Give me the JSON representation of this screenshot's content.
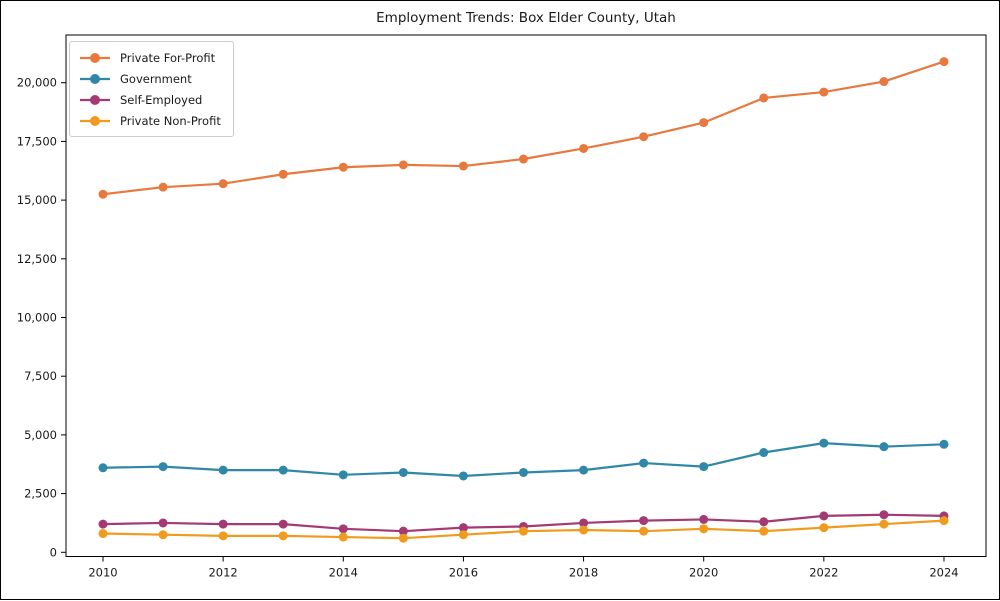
{
  "title": "Employment Trends: Box Elder County, Utah",
  "colors": {
    "private_for_profit": "#e8793e",
    "government": "#3087a8",
    "self_employed": "#a43a73",
    "private_non_profit": "#f09b1e",
    "axis": "#000000",
    "text": "#1a1a1a",
    "legend_border": "#cccccc",
    "background": "#ffffff"
  },
  "x_axis": {
    "tick_labels": [
      "2010",
      "2012",
      "2014",
      "2016",
      "2018",
      "2020",
      "2022",
      "2024"
    ],
    "tick_values": [
      2010,
      2012,
      2014,
      2016,
      2018,
      2020,
      2022,
      2024
    ]
  },
  "y_axis": {
    "tick_labels": [
      "0",
      "2,500",
      "5,000",
      "7,500",
      "10,000",
      "12,500",
      "15,000",
      "17,500",
      "20,000"
    ],
    "tick_values": [
      0,
      2500,
      5000,
      7500,
      10000,
      12500,
      15000,
      17500,
      20000
    ]
  },
  "legend": {
    "entries": [
      "Private For-Profit",
      "Government",
      "Self-Employed",
      "Private Non-Profit"
    ]
  },
  "chart_data": {
    "type": "line",
    "title": "Employment Trends: Box Elder County, Utah",
    "xlabel": "",
    "ylabel": "",
    "x": [
      2010,
      2011,
      2012,
      2013,
      2014,
      2015,
      2016,
      2017,
      2018,
      2019,
      2020,
      2021,
      2022,
      2023,
      2024
    ],
    "series": [
      {
        "name": "Private For-Profit",
        "color": "#e8793e",
        "values": [
          15250,
          15550,
          15700,
          16100,
          16400,
          16500,
          16450,
          16750,
          17200,
          17700,
          18300,
          19350,
          19600,
          20050,
          20900
        ]
      },
      {
        "name": "Government",
        "color": "#3087a8",
        "values": [
          3600,
          3650,
          3500,
          3500,
          3300,
          3400,
          3250,
          3400,
          3500,
          3800,
          3650,
          4250,
          4650,
          4500,
          4600
        ]
      },
      {
        "name": "Self-Employed",
        "color": "#a43a73",
        "values": [
          1200,
          1250,
          1200,
          1200,
          1000,
          900,
          1050,
          1100,
          1250,
          1350,
          1400,
          1300,
          1550,
          1600,
          1550
        ]
      },
      {
        "name": "Private Non-Profit",
        "color": "#f09b1e",
        "values": [
          800,
          750,
          700,
          700,
          650,
          600,
          750,
          900,
          950,
          900,
          1000,
          900,
          1050,
          1200,
          1350
        ]
      }
    ],
    "xlim": [
      2009.4,
      2024.7
    ],
    "ylim": [
      -200,
      22050
    ],
    "grid": false,
    "marker": "o",
    "legend_position": "upper left"
  }
}
